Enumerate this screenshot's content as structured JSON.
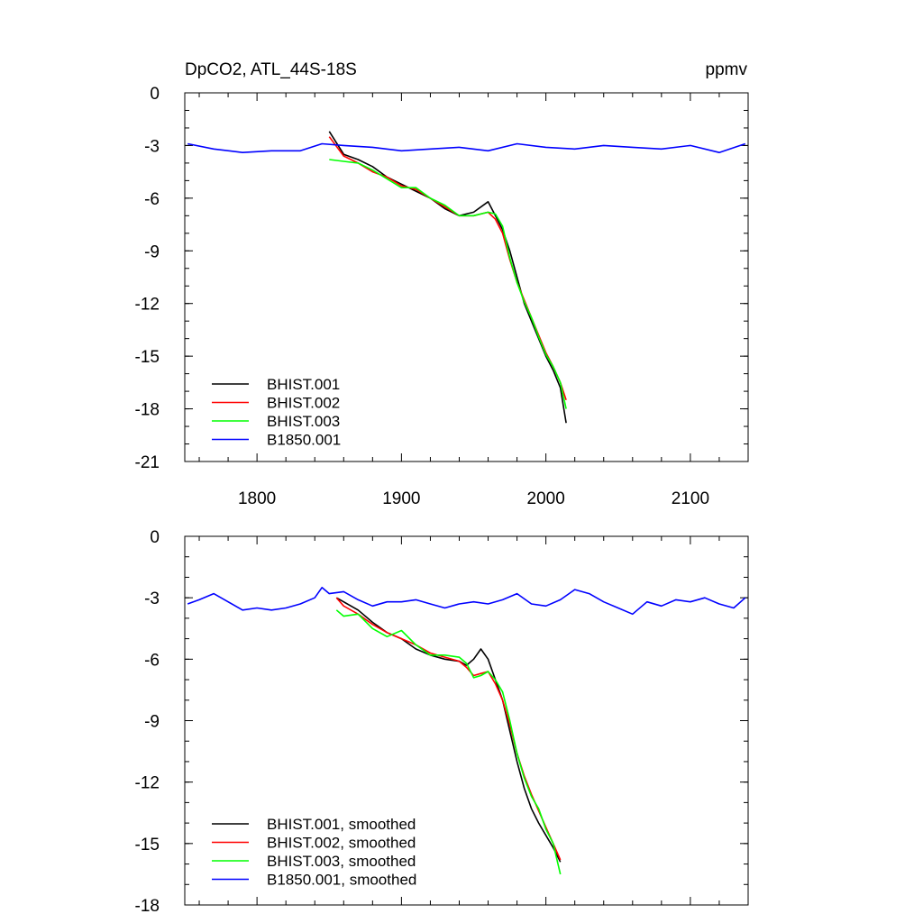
{
  "chart_data": [
    {
      "type": "line",
      "title": "DpCO2, ATL_44S-18S",
      "units": "ppmv",
      "xlim": [
        1750,
        2140
      ],
      "ylim": [
        -21,
        0
      ],
      "xticks": [
        1800,
        1900,
        2000,
        2100
      ],
      "yticks": [
        0,
        -3,
        -6,
        -9,
        -12,
        -15,
        -18,
        -21
      ],
      "xtick_labels_shown": true,
      "legend_position": "bottom-left",
      "series": [
        {
          "name": "BHIST.001",
          "color": "#000000",
          "x": [
            1850,
            1860,
            1870,
            1880,
            1890,
            1900,
            1910,
            1920,
            1930,
            1940,
            1950,
            1960,
            1965,
            1970,
            1975,
            1980,
            1985,
            1990,
            1995,
            2000,
            2005,
            2010,
            2014
          ],
          "y": [
            -2.2,
            -3.5,
            -3.8,
            -4.2,
            -4.8,
            -5.2,
            -5.6,
            -6.0,
            -6.6,
            -7.0,
            -6.8,
            -6.2,
            -7.0,
            -7.8,
            -9.0,
            -10.5,
            -12.0,
            -13.0,
            -14.0,
            -15.0,
            -15.8,
            -16.8,
            -18.8
          ]
        },
        {
          "name": "BHIST.002",
          "color": "#ff0000",
          "x": [
            1850,
            1860,
            1870,
            1880,
            1890,
            1900,
            1910,
            1920,
            1930,
            1940,
            1950,
            1960,
            1965,
            1970,
            1975,
            1980,
            1985,
            1990,
            1995,
            2000,
            2005,
            2010,
            2014
          ],
          "y": [
            -2.5,
            -3.6,
            -4.0,
            -4.5,
            -4.8,
            -5.3,
            -5.5,
            -6.0,
            -6.5,
            -7.0,
            -7.0,
            -6.8,
            -7.2,
            -8.0,
            -9.5,
            -10.8,
            -11.8,
            -12.8,
            -13.8,
            -14.8,
            -15.6,
            -16.5,
            -17.5
          ]
        },
        {
          "name": "BHIST.003",
          "color": "#00ff00",
          "x": [
            1850,
            1860,
            1870,
            1880,
            1890,
            1900,
            1910,
            1920,
            1930,
            1940,
            1950,
            1960,
            1965,
            1970,
            1975,
            1980,
            1985,
            1990,
            1995,
            2000,
            2005,
            2010,
            2014
          ],
          "y": [
            -3.8,
            -3.9,
            -4.0,
            -4.4,
            -4.9,
            -5.4,
            -5.4,
            -6.0,
            -6.4,
            -7.0,
            -7.0,
            -6.8,
            -6.9,
            -7.6,
            -9.4,
            -10.8,
            -11.9,
            -12.8,
            -13.9,
            -14.9,
            -15.6,
            -16.5,
            -18.0
          ]
        },
        {
          "name": "B1850.001",
          "color": "#0000ff",
          "x": [
            1752,
            1770,
            1790,
            1810,
            1830,
            1845,
            1860,
            1880,
            1900,
            1920,
            1940,
            1960,
            1980,
            2000,
            2020,
            2040,
            2060,
            2080,
            2100,
            2120,
            2138
          ],
          "y": [
            -2.9,
            -3.2,
            -3.4,
            -3.3,
            -3.3,
            -2.9,
            -3.0,
            -3.1,
            -3.3,
            -3.2,
            -3.1,
            -3.3,
            -2.9,
            -3.1,
            -3.2,
            -3.0,
            -3.1,
            -3.2,
            -3.0,
            -3.4,
            -2.9
          ]
        }
      ]
    },
    {
      "type": "line",
      "xlim": [
        1750,
        2140
      ],
      "ylim": [
        -18,
        0
      ],
      "xticks": [
        1800,
        1900,
        2000,
        2100
      ],
      "yticks": [
        0,
        -3,
        -6,
        -9,
        -12,
        -15,
        -18
      ],
      "xtick_labels_shown": false,
      "legend_position": "bottom-left",
      "series": [
        {
          "name": "BHIST.001, smoothed",
          "color": "#000000",
          "x": [
            1855,
            1860,
            1870,
            1880,
            1890,
            1900,
            1910,
            1920,
            1930,
            1940,
            1945,
            1950,
            1955,
            1960,
            1965,
            1970,
            1975,
            1980,
            1985,
            1990,
            1995,
            2000,
            2005,
            2010
          ],
          "y": [
            -3.0,
            -3.2,
            -3.6,
            -4.2,
            -4.7,
            -5.0,
            -5.5,
            -5.8,
            -6.0,
            -6.1,
            -6.3,
            -6.0,
            -5.5,
            -6.0,
            -7.0,
            -8.0,
            -9.5,
            -11.0,
            -12.3,
            -13.3,
            -14.0,
            -14.6,
            -15.2,
            -15.9
          ]
        },
        {
          "name": "BHIST.002, smoothed",
          "color": "#ff0000",
          "x": [
            1855,
            1860,
            1870,
            1880,
            1890,
            1900,
            1910,
            1920,
            1930,
            1940,
            1945,
            1950,
            1955,
            1960,
            1965,
            1970,
            1975,
            1980,
            1985,
            1990,
            1995,
            2000,
            2005,
            2010
          ],
          "y": [
            -3.0,
            -3.4,
            -3.8,
            -4.3,
            -4.7,
            -5.0,
            -5.3,
            -5.7,
            -5.9,
            -6.1,
            -6.4,
            -6.8,
            -6.7,
            -6.6,
            -7.2,
            -8.0,
            -9.2,
            -10.6,
            -11.7,
            -12.6,
            -13.4,
            -14.2,
            -15.0,
            -15.8
          ]
        },
        {
          "name": "BHIST.003, smoothed",
          "color": "#00ff00",
          "x": [
            1855,
            1860,
            1870,
            1880,
            1890,
            1900,
            1910,
            1920,
            1930,
            1940,
            1945,
            1950,
            1955,
            1960,
            1965,
            1970,
            1975,
            1980,
            1985,
            1990,
            1995,
            2000,
            2005,
            2010
          ],
          "y": [
            -3.6,
            -3.9,
            -3.8,
            -4.5,
            -4.9,
            -4.6,
            -5.3,
            -5.8,
            -5.8,
            -5.9,
            -6.2,
            -6.9,
            -6.8,
            -6.6,
            -7.0,
            -7.6,
            -9.0,
            -10.6,
            -11.8,
            -12.7,
            -13.3,
            -14.3,
            -15.0,
            -16.5
          ]
        },
        {
          "name": "B1850.001, smoothed",
          "color": "#0000ff",
          "x": [
            1752,
            1760,
            1770,
            1780,
            1790,
            1800,
            1810,
            1820,
            1830,
            1840,
            1845,
            1850,
            1860,
            1870,
            1880,
            1890,
            1900,
            1910,
            1920,
            1930,
            1940,
            1950,
            1960,
            1970,
            1980,
            1990,
            2000,
            2010,
            2020,
            2030,
            2040,
            2050,
            2060,
            2070,
            2080,
            2090,
            2100,
            2110,
            2120,
            2130,
            2138
          ],
          "y": [
            -3.3,
            -3.1,
            -2.8,
            -3.2,
            -3.6,
            -3.5,
            -3.6,
            -3.5,
            -3.3,
            -3.0,
            -2.5,
            -2.8,
            -2.7,
            -3.1,
            -3.4,
            -3.2,
            -3.2,
            -3.1,
            -3.3,
            -3.5,
            -3.3,
            -3.2,
            -3.3,
            -3.1,
            -2.8,
            -3.3,
            -3.4,
            -3.1,
            -2.6,
            -2.8,
            -3.2,
            -3.5,
            -3.8,
            -3.2,
            -3.4,
            -3.1,
            -3.2,
            -3.0,
            -3.3,
            -3.5,
            -3.0
          ]
        }
      ]
    }
  ]
}
